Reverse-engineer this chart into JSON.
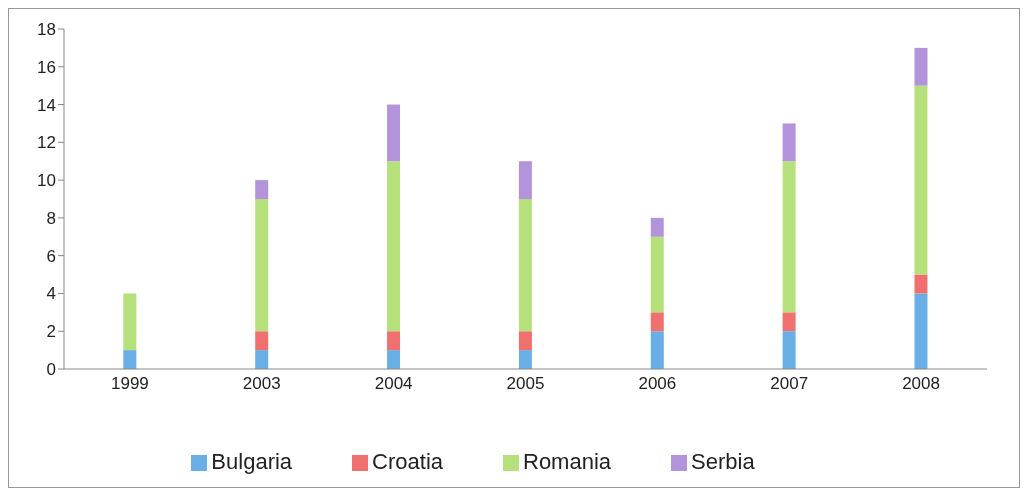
{
  "chart_data": {
    "type": "bar",
    "stacked": true,
    "categories": [
      "1999",
      "2003",
      "2004",
      "2005",
      "2006",
      "2007",
      "2008"
    ],
    "series": [
      {
        "name": "Bulgaria",
        "color": "#6aaee6",
        "values": [
          1,
          1,
          1,
          1,
          2,
          2,
          4
        ]
      },
      {
        "name": "Croatia",
        "color": "#f07070",
        "values": [
          0,
          1,
          1,
          1,
          1,
          1,
          1
        ]
      },
      {
        "name": "Romania",
        "color": "#b6e07c",
        "values": [
          3,
          7,
          9,
          7,
          4,
          8,
          10
        ]
      },
      {
        "name": "Serbia",
        "color": "#b394da",
        "values": [
          0,
          1,
          3,
          2,
          1,
          2,
          2
        ]
      }
    ],
    "ylim": [
      0,
      18
    ],
    "yticks": [
      0,
      2,
      4,
      6,
      8,
      10,
      12,
      14,
      16,
      18
    ],
    "grid": false,
    "legend": "bottom"
  }
}
